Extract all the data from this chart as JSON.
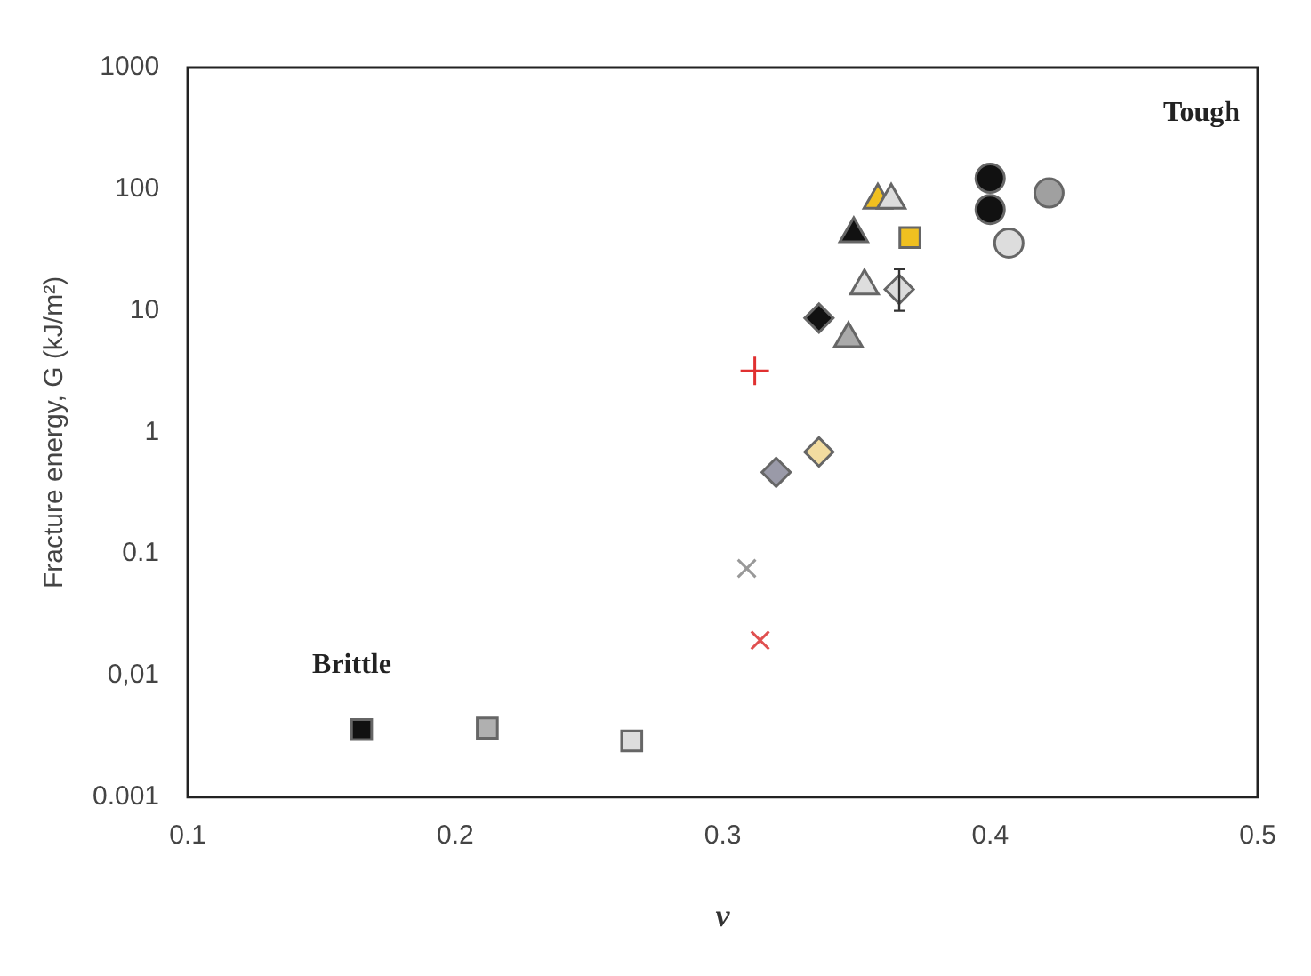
{
  "chart_data": {
    "type": "scatter",
    "xlabel": "ν",
    "ylabel": "Fracture energy, G (kJ/m²)",
    "log": "y",
    "grid": false,
    "legend": false,
    "xlim": [
      0.1,
      0.5
    ],
    "xticks": [
      0.1,
      0.2,
      0.3,
      0.4,
      0.5
    ],
    "ylim": [
      0.001,
      1000
    ],
    "yticks": [
      0.001,
      {
        "value": 0.01,
        "label": "0,01"
      },
      0.1,
      1,
      10,
      100,
      1000
    ],
    "annotations": [
      "Tough",
      "Brittle"
    ],
    "series": [
      {
        "x": [
          0.165
        ],
        "values": [
          0.0036
        ],
        "marker": "square",
        "color": "#111111"
      },
      {
        "x": [
          0.212
        ],
        "values": [
          0.0037
        ],
        "marker": "square",
        "color": "#b0b0b0"
      },
      {
        "x": [
          0.266
        ],
        "values": [
          0.0029
        ],
        "marker": "square",
        "color": "#dddddd"
      },
      {
        "x": [
          0.309
        ],
        "values": [
          0.076
        ],
        "marker": "cross",
        "color": "#999999"
      },
      {
        "x": [
          0.314
        ],
        "values": [
          0.0195
        ],
        "marker": "cross",
        "color": "#e05050"
      },
      {
        "x": [
          0.32
        ],
        "values": [
          0.47
        ],
        "marker": "diamond",
        "color": "#9a9aa8"
      },
      {
        "x": [
          0.336
        ],
        "values": [
          0.69
        ],
        "marker": "diamond",
        "color": "#f2dca0"
      },
      {
        "x": [
          0.312
        ],
        "values": [
          3.2
        ],
        "marker": "plus",
        "color": "#e03030"
      },
      {
        "x": [
          0.336
        ],
        "values": [
          8.7
        ],
        "marker": "diamond",
        "color": "#111111"
      },
      {
        "x": [
          0.347
        ],
        "values": [
          5.9
        ],
        "marker": "triangle",
        "color": "#aaaaaa"
      },
      {
        "x": [
          0.353
        ],
        "values": [
          16
        ],
        "marker": "triangle",
        "color": "#dddddd"
      },
      {
        "x": [
          0.366
        ],
        "values": [
          15
        ],
        "marker": "diamond",
        "color": "#dddddd",
        "errors": [
          [
            10,
            22
          ]
        ]
      },
      {
        "x": [
          0.363
        ],
        "values": [
          81
        ],
        "marker": "triangle",
        "color": "#dddddd"
      },
      {
        "x": [
          0.358
        ],
        "values": [
          81
        ],
        "marker": "triangle",
        "color": "#f0c020"
      },
      {
        "x": [
          0.349
        ],
        "values": [
          43
        ],
        "marker": "triangle",
        "color": "#111111"
      },
      {
        "x": [
          0.37
        ],
        "values": [
          40
        ],
        "marker": "square",
        "color": "#f0c020"
      },
      {
        "x": [
          0.4
        ],
        "values": [
          123
        ],
        "marker": "circle",
        "color": "#111111"
      },
      {
        "x": [
          0.4
        ],
        "values": [
          68
        ],
        "marker": "circle",
        "color": "#111111"
      },
      {
        "x": [
          0.422
        ],
        "values": [
          93
        ],
        "marker": "circle",
        "color": "#a0a0a0"
      },
      {
        "x": [
          0.407
        ],
        "values": [
          36
        ],
        "marker": "circle",
        "color": "#dddddd"
      }
    ]
  }
}
